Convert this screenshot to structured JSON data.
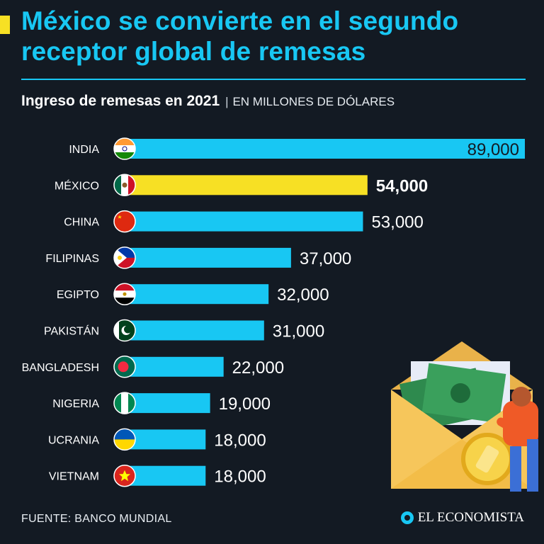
{
  "header": {
    "title": "México se convierte en el segundo receptor global de remesas",
    "subtitle": "Ingreso de remesas en 2021",
    "separator": "|",
    "unit": "EN MILLONES DE DÓLARES"
  },
  "footer": {
    "source": "FUENTE: BANCO MUNDIAL",
    "brand": "EL ECONOMISTA"
  },
  "colors": {
    "bar": "#18c7f3",
    "highlight": "#f7e024",
    "background": "#131a23",
    "title": "#18c7f3"
  },
  "chart_data": {
    "type": "bar",
    "orientation": "horizontal",
    "categories": [
      "INDIA",
      "MÉXICO",
      "CHINA",
      "FILIPINAS",
      "EGIPTO",
      "PAKISTÁN",
      "BANGLADESH",
      "NIGERIA",
      "UCRANIA",
      "VIETNAM"
    ],
    "values": [
      89000,
      54000,
      53000,
      37000,
      32000,
      31000,
      22000,
      19000,
      18000,
      18000
    ],
    "value_labels": [
      "89,000",
      "54,000",
      "53,000",
      "37,000",
      "32,000",
      "31,000",
      "22,000",
      "19,000",
      "18,000",
      "18,000"
    ],
    "highlighted": "MÉXICO",
    "flags": [
      "india-flag-icon",
      "mexico-flag-icon",
      "china-flag-icon",
      "philippines-flag-icon",
      "egypt-flag-icon",
      "pakistan-flag-icon",
      "bangladesh-flag-icon",
      "nigeria-flag-icon",
      "ukraine-flag-icon",
      "vietnam-flag-icon"
    ],
    "title": "Ingreso de remesas en 2021",
    "xlabel": "",
    "ylabel": "",
    "xlim": [
      0,
      89000
    ],
    "grid": false,
    "legend": "none"
  }
}
